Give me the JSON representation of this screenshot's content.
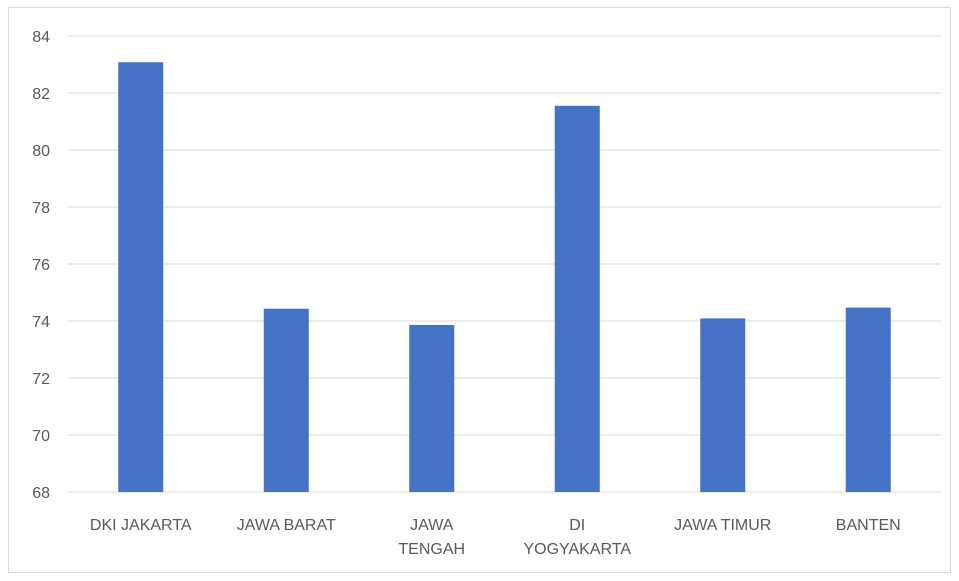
{
  "chart_data": {
    "type": "bar",
    "categories": [
      "DKI JAKARTA",
      "JAWA BARAT",
      "JAWA TENGAH",
      "DI YOGYAKARTA",
      "JAWA TIMUR",
      "BANTEN"
    ],
    "category_label_lines": [
      [
        "DKI JAKARTA"
      ],
      [
        "JAWA BARAT"
      ],
      [
        "JAWA",
        "TENGAH"
      ],
      [
        "DI",
        "YOGYAKARTA"
      ],
      [
        "JAWA TIMUR"
      ],
      [
        "BANTEN"
      ]
    ],
    "values": [
      83.08,
      74.43,
      73.86,
      81.55,
      74.09,
      74.47
    ],
    "ylim": [
      68,
      84
    ],
    "yticks": [
      68,
      70,
      72,
      74,
      76,
      78,
      80,
      82,
      84
    ],
    "title": "",
    "xlabel": "",
    "ylabel": "",
    "grid": true,
    "legend": "none",
    "colors": {
      "bar": "#4472C4",
      "grid": "#d9d9d9",
      "tick_text": "#595959"
    }
  }
}
